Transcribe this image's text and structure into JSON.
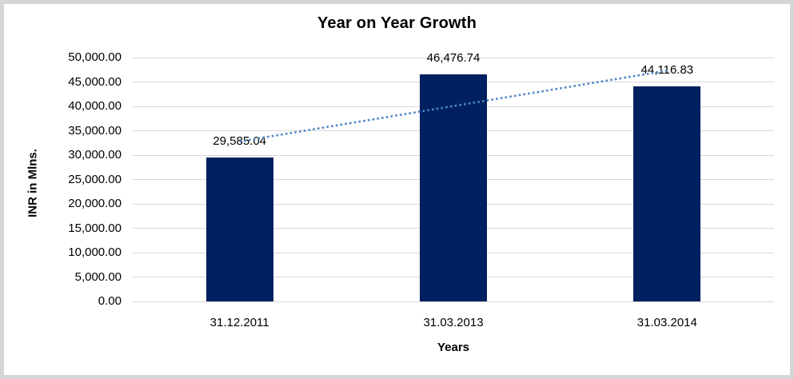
{
  "chart_data": {
    "type": "bar",
    "title": "Year on Year Growth",
    "categories": [
      "31.12.2011",
      "31.03.2013",
      "31.03.2014"
    ],
    "values": [
      29585.04,
      46476.74,
      44116.83
    ],
    "data_labels": [
      "29,585.04",
      "46,476.74",
      "44,116.83"
    ],
    "xlabel": "Years",
    "ylabel": "INR in Mlns.",
    "ylim": [
      0,
      50000
    ],
    "ytick_step": 5000,
    "ytick_labels": [
      "0.00",
      "5,000.00",
      "10,000.00",
      "15,000.00",
      "20,000.00",
      "25,000.00",
      "30,000.00",
      "35,000.00",
      "40,000.00",
      "45,000.00",
      "50,000.00"
    ],
    "grid": true,
    "legend": "none",
    "bar_color": "#002060",
    "trendline": {
      "kind": "linear",
      "style": "dotted",
      "color": "#4e87c8",
      "start_value": 32794,
      "end_value": 47326
    }
  },
  "colors": {
    "background": "#ffffff",
    "frame_border": "#d6d6d6",
    "gridline": "#d9d9d9",
    "text": "#000000"
  }
}
